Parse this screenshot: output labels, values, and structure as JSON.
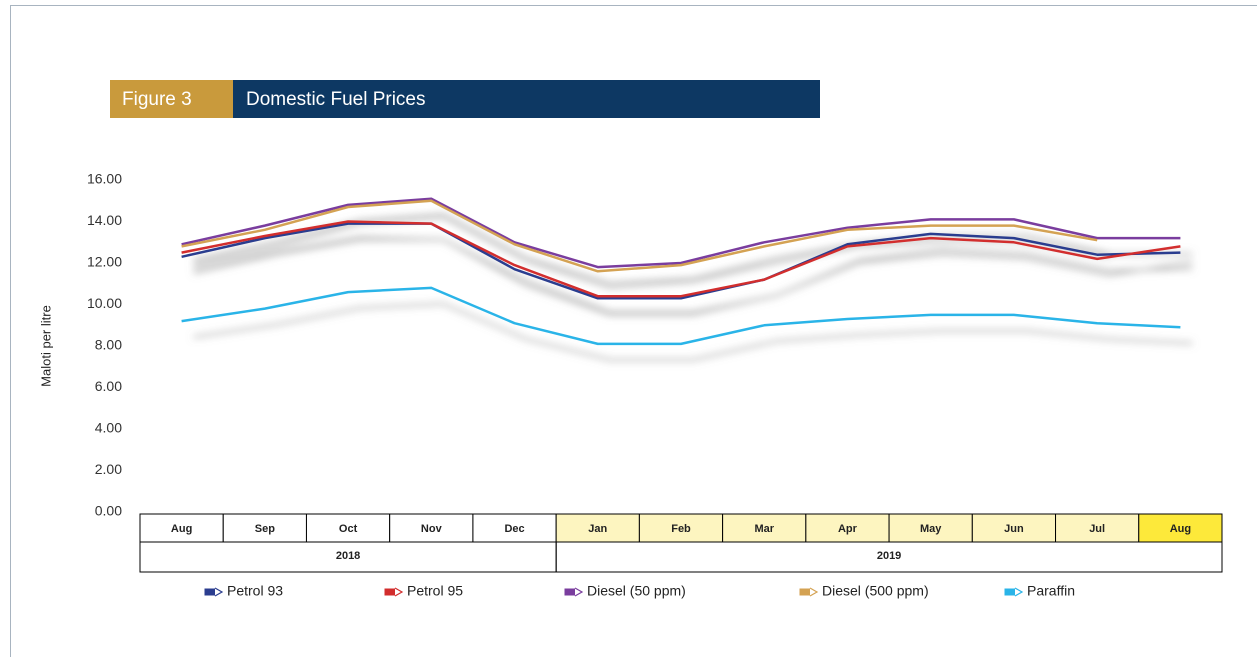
{
  "chart_data": {
    "type": "line",
    "figure_label": "Figure 3",
    "title": "Domestic Fuel Prices",
    "ylabel": "Maloti per litre",
    "categories": [
      "Aug",
      "Sep",
      "Oct",
      "Nov",
      "Dec",
      "Jan",
      "Feb",
      "Mar",
      "Apr",
      "May",
      "Jun",
      "Jul",
      "Aug"
    ],
    "category_colors": [
      "#ffffff",
      "#ffffff",
      "#ffffff",
      "#ffffff",
      "#ffffff",
      "#fdf5c0",
      "#fdf5c0",
      "#fdf5c0",
      "#fdf5c0",
      "#fdf5c0",
      "#fdf5c0",
      "#fdf5c0",
      "#fde93a"
    ],
    "year_groups": [
      {
        "label": "2018",
        "span": 5
      },
      {
        "label": "2019",
        "span": 8
      }
    ],
    "ylim": [
      0,
      16
    ],
    "yticks": [
      {
        "value": 0,
        "label": "0.00"
      },
      {
        "value": 2,
        "label": "2.00"
      },
      {
        "value": 4,
        "label": "4.00"
      },
      {
        "value": 6,
        "label": "6.00"
      },
      {
        "value": 8,
        "label": "8.00"
      },
      {
        "value": 10,
        "label": "10.00"
      },
      {
        "value": 12,
        "label": "12.00"
      },
      {
        "value": 14,
        "label": "14.00"
      },
      {
        "value": 16,
        "label": "16.00"
      }
    ],
    "series": [
      {
        "name": "Petrol 93",
        "color": "#2b3d8f",
        "values": [
          12.3,
          13.2,
          13.9,
          13.9,
          11.7,
          10.3,
          10.3,
          11.2,
          12.9,
          13.4,
          13.2,
          12.4,
          12.5
        ]
      },
      {
        "name": "Petrol 95",
        "color": "#d22d2d",
        "values": [
          12.5,
          13.3,
          14.0,
          13.9,
          11.9,
          10.4,
          10.4,
          11.2,
          12.8,
          13.2,
          13.0,
          12.2,
          12.8
        ]
      },
      {
        "name": "Diesel (50 ppm)",
        "color": "#7a3d9e",
        "values": [
          12.9,
          13.8,
          14.8,
          15.1,
          13.0,
          11.8,
          12.0,
          13.0,
          13.7,
          14.1,
          14.1,
          13.2,
          13.2
        ]
      },
      {
        "name": "Diesel (500 ppm)",
        "color": "#d4a252",
        "values": [
          12.8,
          13.6,
          14.7,
          15.0,
          12.9,
          11.6,
          11.9,
          12.8,
          13.6,
          13.8,
          13.8,
          13.1,
          null
        ]
      },
      {
        "name": "Paraffin",
        "color": "#2ab4e8",
        "values": [
          9.2,
          9.8,
          10.6,
          10.8,
          9.1,
          8.1,
          8.1,
          9.0,
          9.3,
          9.5,
          9.5,
          9.1,
          8.9
        ]
      }
    ]
  }
}
